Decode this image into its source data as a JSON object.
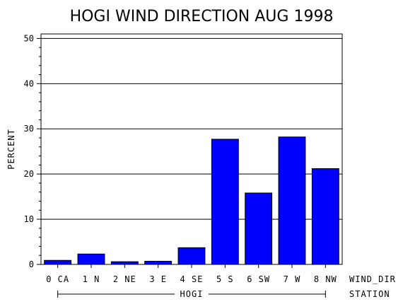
{
  "chart_data": {
    "type": "bar",
    "title": "HOGI WIND DIRECTION AUG 1998",
    "ylabel": "PERCENT",
    "xlabel": "WIND_DIR",
    "group_axis_label": "STATION",
    "group_label": "HOGI",
    "categories": [
      "0 CA",
      "1 N",
      "2 NE",
      "3 E",
      "4 SE",
      "5 S",
      "6 SW",
      "7 W",
      "8 NW"
    ],
    "values": [
      0.9,
      2.3,
      0.6,
      0.7,
      3.7,
      27.7,
      15.8,
      28.2,
      21.2
    ],
    "ylim": [
      0,
      51
    ],
    "yticks": [
      0,
      10,
      20,
      30,
      40,
      50
    ],
    "bar_color": "#0000ff",
    "grid": true
  }
}
